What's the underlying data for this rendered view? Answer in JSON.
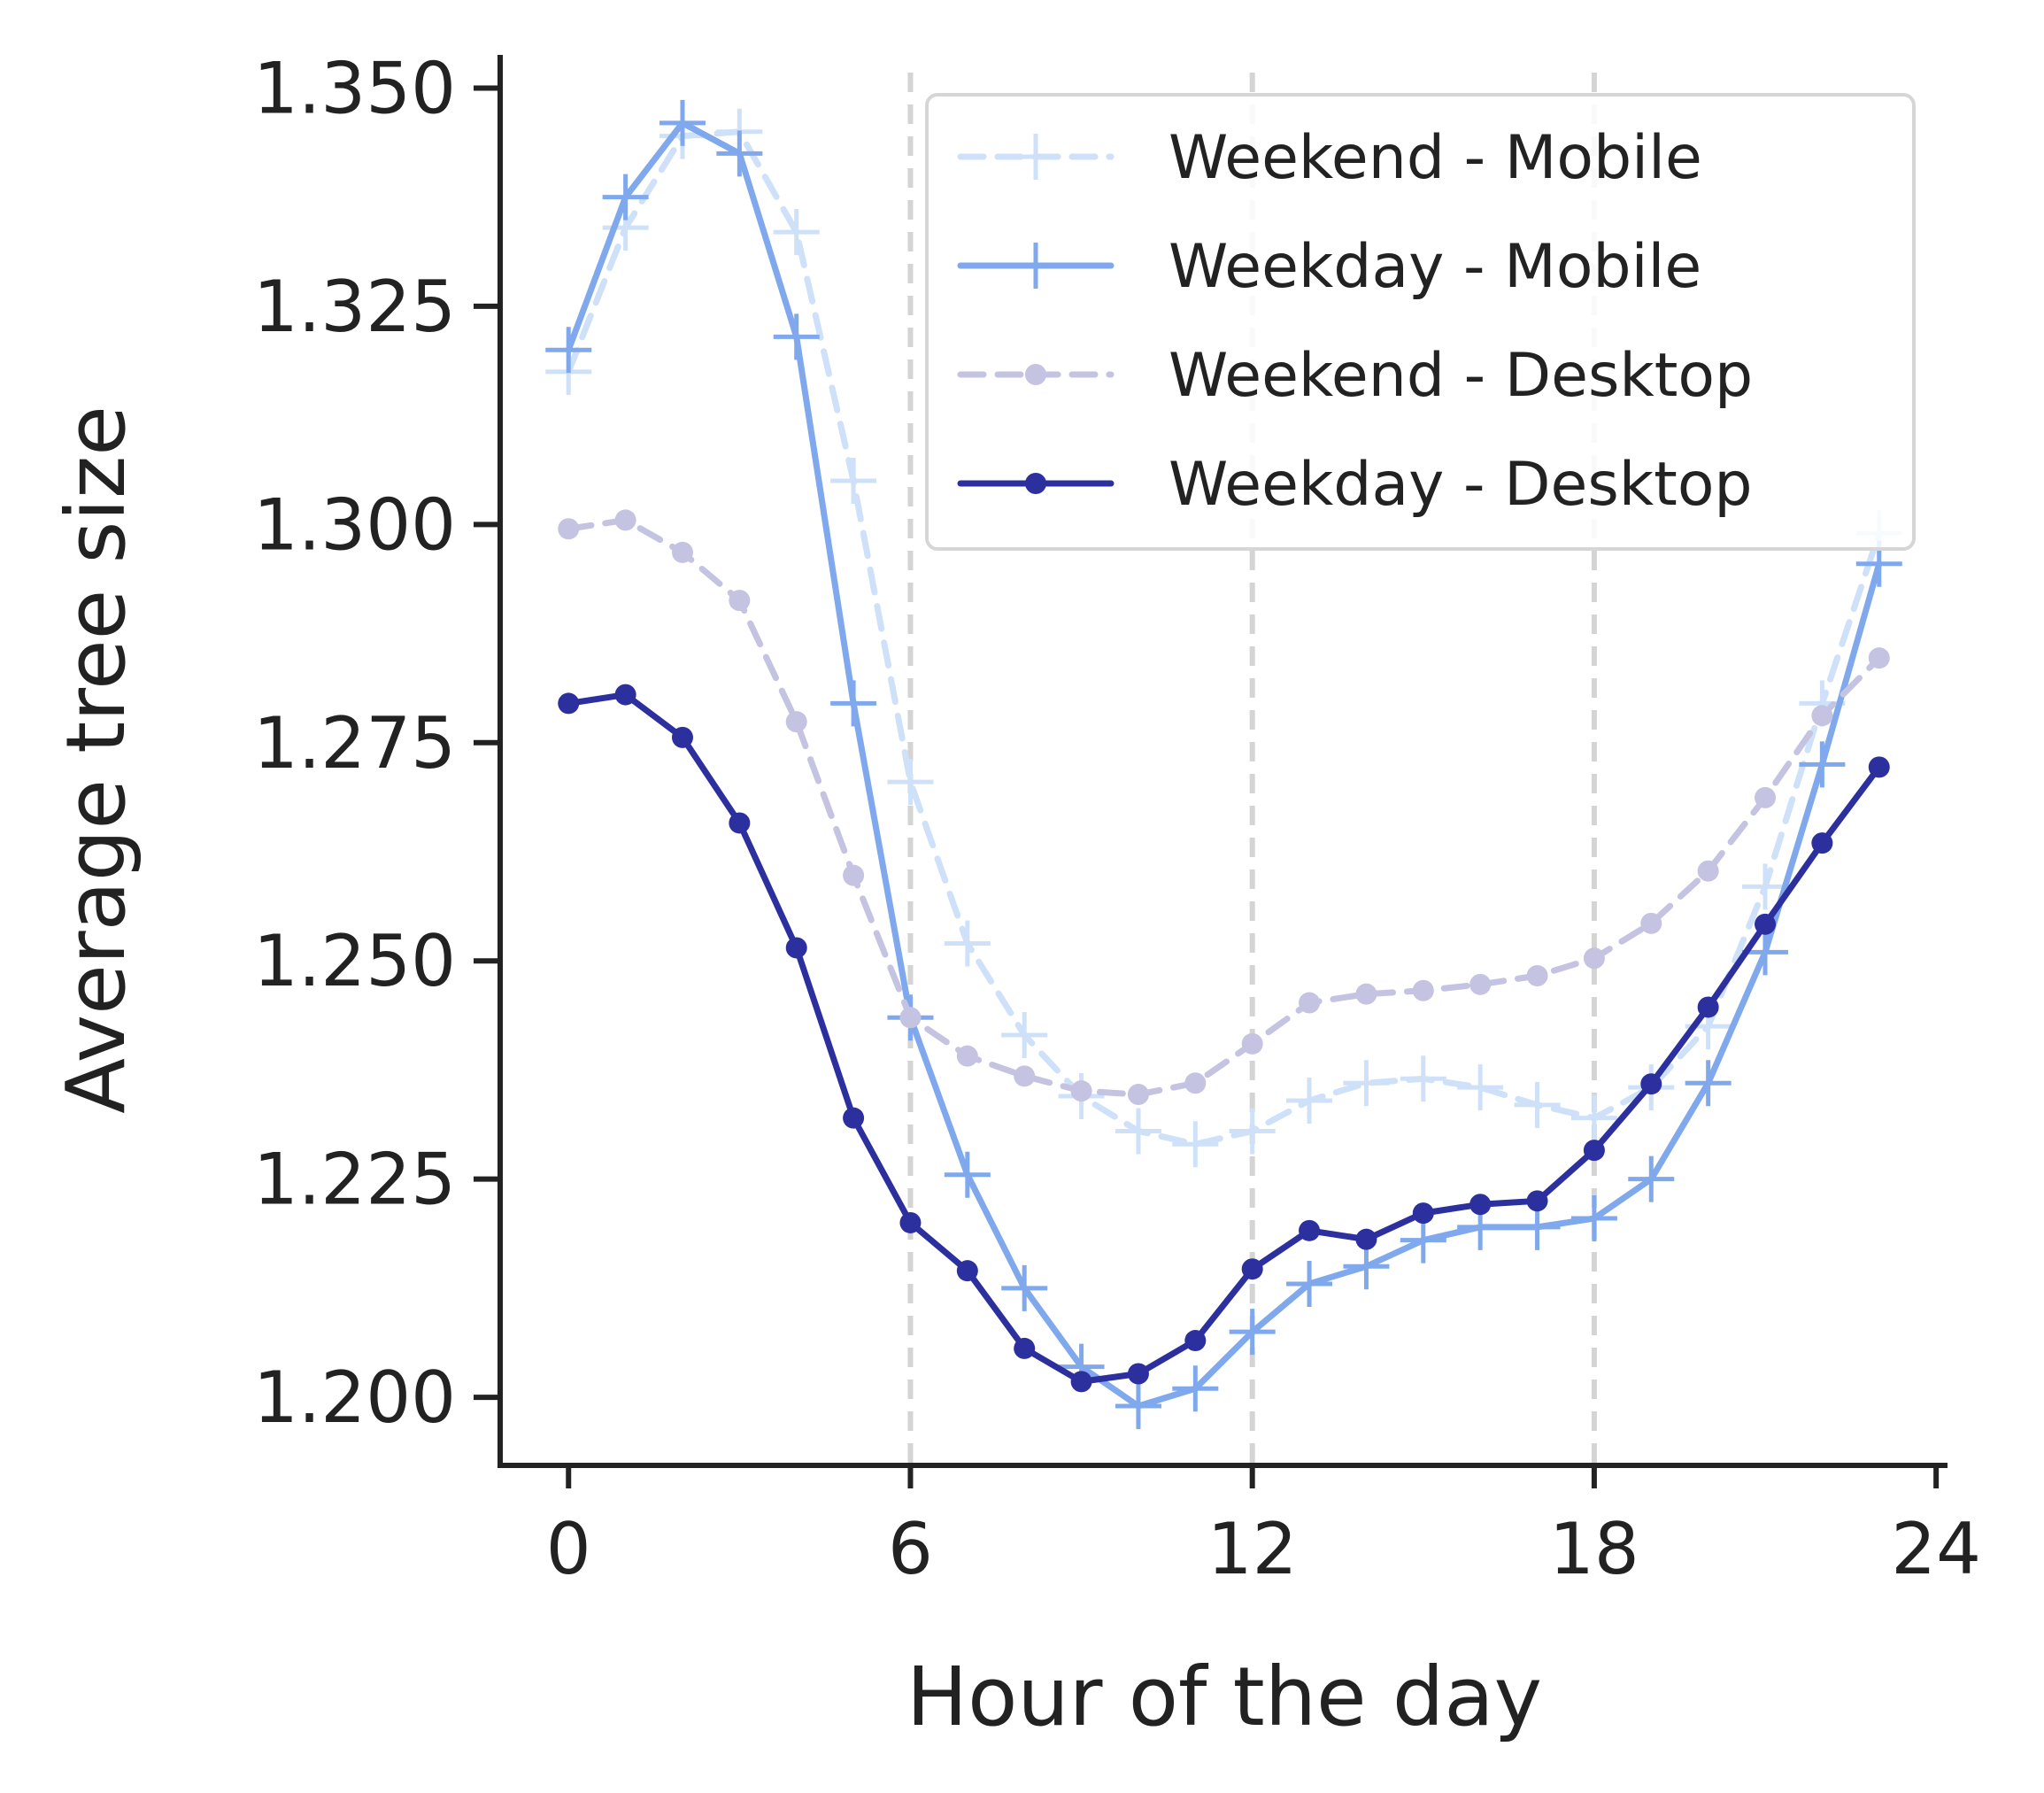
{
  "chart_data": {
    "type": "line",
    "xlabel": "Hour of the day",
    "ylabel": "Average tree size",
    "xlim": [
      -1.2,
      24.2
    ],
    "ylim": [
      1.1922,
      1.3538
    ],
    "xticks": [
      0,
      6,
      12,
      18,
      24
    ],
    "xtick_labels": [
      "0",
      "6",
      "12",
      "18",
      "24"
    ],
    "yticks": [
      1.2,
      1.225,
      1.25,
      1.275,
      1.3,
      1.325,
      1.35
    ],
    "ytick_labels": [
      "1.200",
      "1.225",
      "1.250",
      "1.275",
      "1.300",
      "1.325",
      "1.350"
    ],
    "vlines": [
      6,
      12,
      18
    ],
    "grid": false,
    "legend_position": "upper right",
    "x": [
      0,
      1,
      2,
      3,
      4,
      5,
      6,
      7,
      8,
      9,
      10,
      11,
      12,
      13,
      14,
      15,
      16,
      17,
      18,
      19,
      20,
      21,
      22,
      23
    ],
    "series": [
      {
        "name": "Weekend - Mobile",
        "color": "#cfe0f9",
        "style": "dashed",
        "marker": "plus",
        "values": [
          1.3175,
          1.334,
          1.3445,
          1.345,
          1.3335,
          1.305,
          1.2705,
          1.252,
          1.2415,
          1.2345,
          1.2305,
          1.229,
          1.2305,
          1.234,
          1.236,
          1.2365,
          1.2355,
          1.2335,
          1.232,
          1.2355,
          1.2425,
          1.2585,
          1.2795,
          1.299
        ]
      },
      {
        "name": "Weekday - Mobile",
        "color": "#7fa8ed",
        "style": "solid",
        "marker": "plus",
        "values": [
          1.32,
          1.3375,
          1.346,
          1.3425,
          1.3215,
          1.2795,
          1.2435,
          1.2255,
          1.2125,
          1.2035,
          1.199,
          1.201,
          1.2075,
          1.213,
          1.215,
          1.218,
          1.2195,
          1.2195,
          1.2205,
          1.225,
          1.236,
          1.251,
          1.2725,
          1.2955
        ]
      },
      {
        "name": "Weekend - Desktop",
        "color": "#c4c3e1",
        "style": "dashed",
        "marker": "dot",
        "values": [
          1.2995,
          1.3005,
          1.2968,
          1.2913,
          1.2774,
          1.2598,
          1.2435,
          1.2391,
          1.2368,
          1.2351,
          1.2347,
          1.236,
          1.2405,
          1.2452,
          1.2462,
          1.2466,
          1.2473,
          1.2483,
          1.2503,
          1.2543,
          1.2603,
          1.2687,
          1.2781,
          1.2847
        ]
      },
      {
        "name": "Weekday - Desktop",
        "color": "#2c2f9e",
        "style": "solid",
        "marker": "dot",
        "values": [
          1.2795,
          1.2805,
          1.2756,
          1.2658,
          1.2515,
          1.232,
          1.22,
          1.2145,
          1.2056,
          1.2018,
          1.2027,
          1.2065,
          1.2147,
          1.2191,
          1.2181,
          1.2211,
          1.2221,
          1.2225,
          1.2283,
          1.2359,
          1.2447,
          1.2542,
          1.2635,
          1.2722
        ]
      }
    ]
  }
}
